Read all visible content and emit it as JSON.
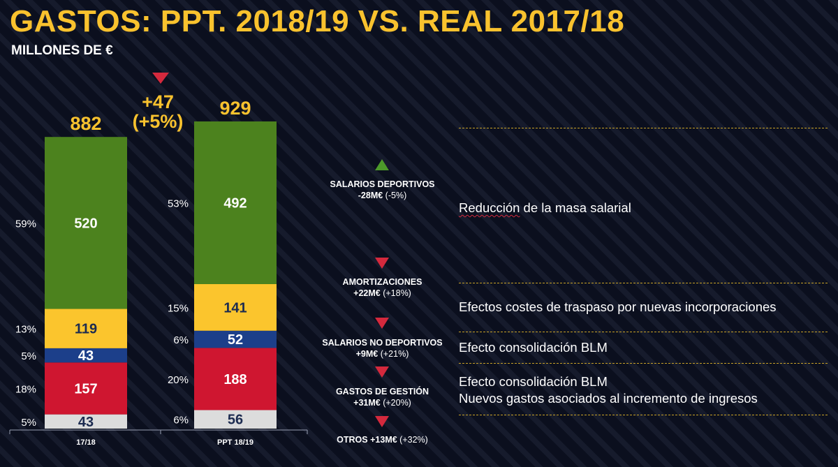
{
  "title": "GASTOS: PPT. 2018/19 VS. REAL 2017/18",
  "subtitle": "MILLONES DE €",
  "delta": {
    "value": "+47",
    "pct": "(+5%)"
  },
  "chart_data": {
    "type": "bar",
    "stacked": true,
    "categories": [
      "17/18",
      "PPT 18/19"
    ],
    "totals": [
      882,
      929
    ],
    "series": [
      {
        "name": "Otros",
        "color": "#dcdcdc",
        "text_color": "#1c2b50",
        "values": [
          43,
          56
        ],
        "pct_labels": [
          "5%",
          "6%"
        ]
      },
      {
        "name": "Gastos de gestión",
        "color": "#cf1630",
        "text_color": "#ffffff",
        "values": [
          157,
          188
        ],
        "pct_labels": [
          "18%",
          "20%"
        ]
      },
      {
        "name": "Salarios no deportivos",
        "color": "#1c3f8a",
        "text_color": "#ffffff",
        "values": [
          43,
          52
        ],
        "pct_labels": [
          "5%",
          "6%"
        ]
      },
      {
        "name": "Amortizaciones",
        "color": "#fbc52d",
        "text_color": "#1c2b50",
        "values": [
          119,
          141
        ],
        "pct_labels": [
          "13%",
          "15%"
        ]
      },
      {
        "name": "Salarios deportivos",
        "color": "#4c821e",
        "text_color": "#ffffff",
        "values": [
          520,
          492
        ],
        "pct_labels": [
          "59%",
          "53%"
        ]
      }
    ]
  },
  "changes": [
    {
      "direction": "up",
      "name": "SALARIOS DEPORTIVOS",
      "value": "-28M€",
      "pct": "(-5%)"
    },
    {
      "direction": "down",
      "name": "AMORTIZACIONES",
      "value": "+22M€",
      "pct": "(+18%)"
    },
    {
      "direction": "down",
      "name": "SALARIOS NO DEPORTIVOS",
      "value": "+9M€",
      "pct": "(+21%)"
    },
    {
      "direction": "down",
      "name": "GASTOS DE GESTIÓN",
      "value": "+31M€",
      "pct": "(+20%)"
    },
    {
      "direction": "down",
      "name": "OTROS",
      "value": "+13M€",
      "pct": "(+32%)"
    }
  ],
  "explanations": {
    "salarios_deportivos": {
      "word1": "Reducción",
      "rest": " de la masa salarial"
    },
    "amortizaciones": "Efectos costes de traspaso por nuevas incorporaciones",
    "salarios_no_deportivos": "Efecto consolidación BLM",
    "gastos_gestion_1": "Efecto consolidación BLM",
    "gastos_gestion_2": "Nuevos gastos asociados al incremento de ingresos"
  },
  "colors": {
    "accent": "#f9c22e",
    "up": "#4c9a2a",
    "down": "#d4293d",
    "dash": "#c9a227"
  }
}
